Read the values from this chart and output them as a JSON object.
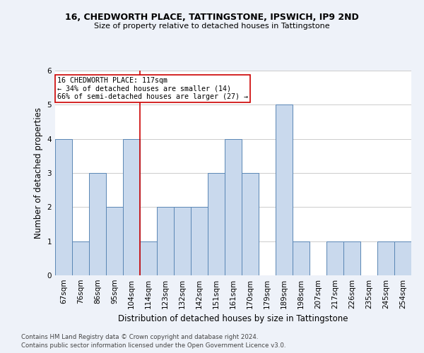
{
  "title1": "16, CHEDWORTH PLACE, TATTINGSTONE, IPSWICH, IP9 2ND",
  "title2": "Size of property relative to detached houses in Tattingstone",
  "xlabel": "Distribution of detached houses by size in Tattingstone",
  "ylabel": "Number of detached properties",
  "categories": [
    "67sqm",
    "76sqm",
    "86sqm",
    "95sqm",
    "104sqm",
    "114sqm",
    "123sqm",
    "132sqm",
    "142sqm",
    "151sqm",
    "161sqm",
    "170sqm",
    "179sqm",
    "189sqm",
    "198sqm",
    "207sqm",
    "217sqm",
    "226sqm",
    "235sqm",
    "245sqm",
    "254sqm"
  ],
  "values": [
    4,
    1,
    3,
    2,
    4,
    1,
    2,
    2,
    2,
    3,
    4,
    3,
    0,
    5,
    1,
    0,
    1,
    1,
    0,
    1,
    1
  ],
  "bar_color": "#c9d9ed",
  "bar_edge_color": "#5a86b5",
  "property_line_index": 5,
  "red_line_color": "#cc0000",
  "annotation_text": "16 CHEDWORTH PLACE: 117sqm\n← 34% of detached houses are smaller (14)\n66% of semi-detached houses are larger (27) →",
  "annotation_box_color": "#ffffff",
  "annotation_box_edge": "#cc0000",
  "ylim": [
    0,
    6
  ],
  "yticks": [
    0,
    1,
    2,
    3,
    4,
    5,
    6
  ],
  "footer1": "Contains HM Land Registry data © Crown copyright and database right 2024.",
  "footer2": "Contains public sector information licensed under the Open Government Licence v3.0.",
  "bg_color": "#eef2f9",
  "plot_bg_color": "#ffffff"
}
